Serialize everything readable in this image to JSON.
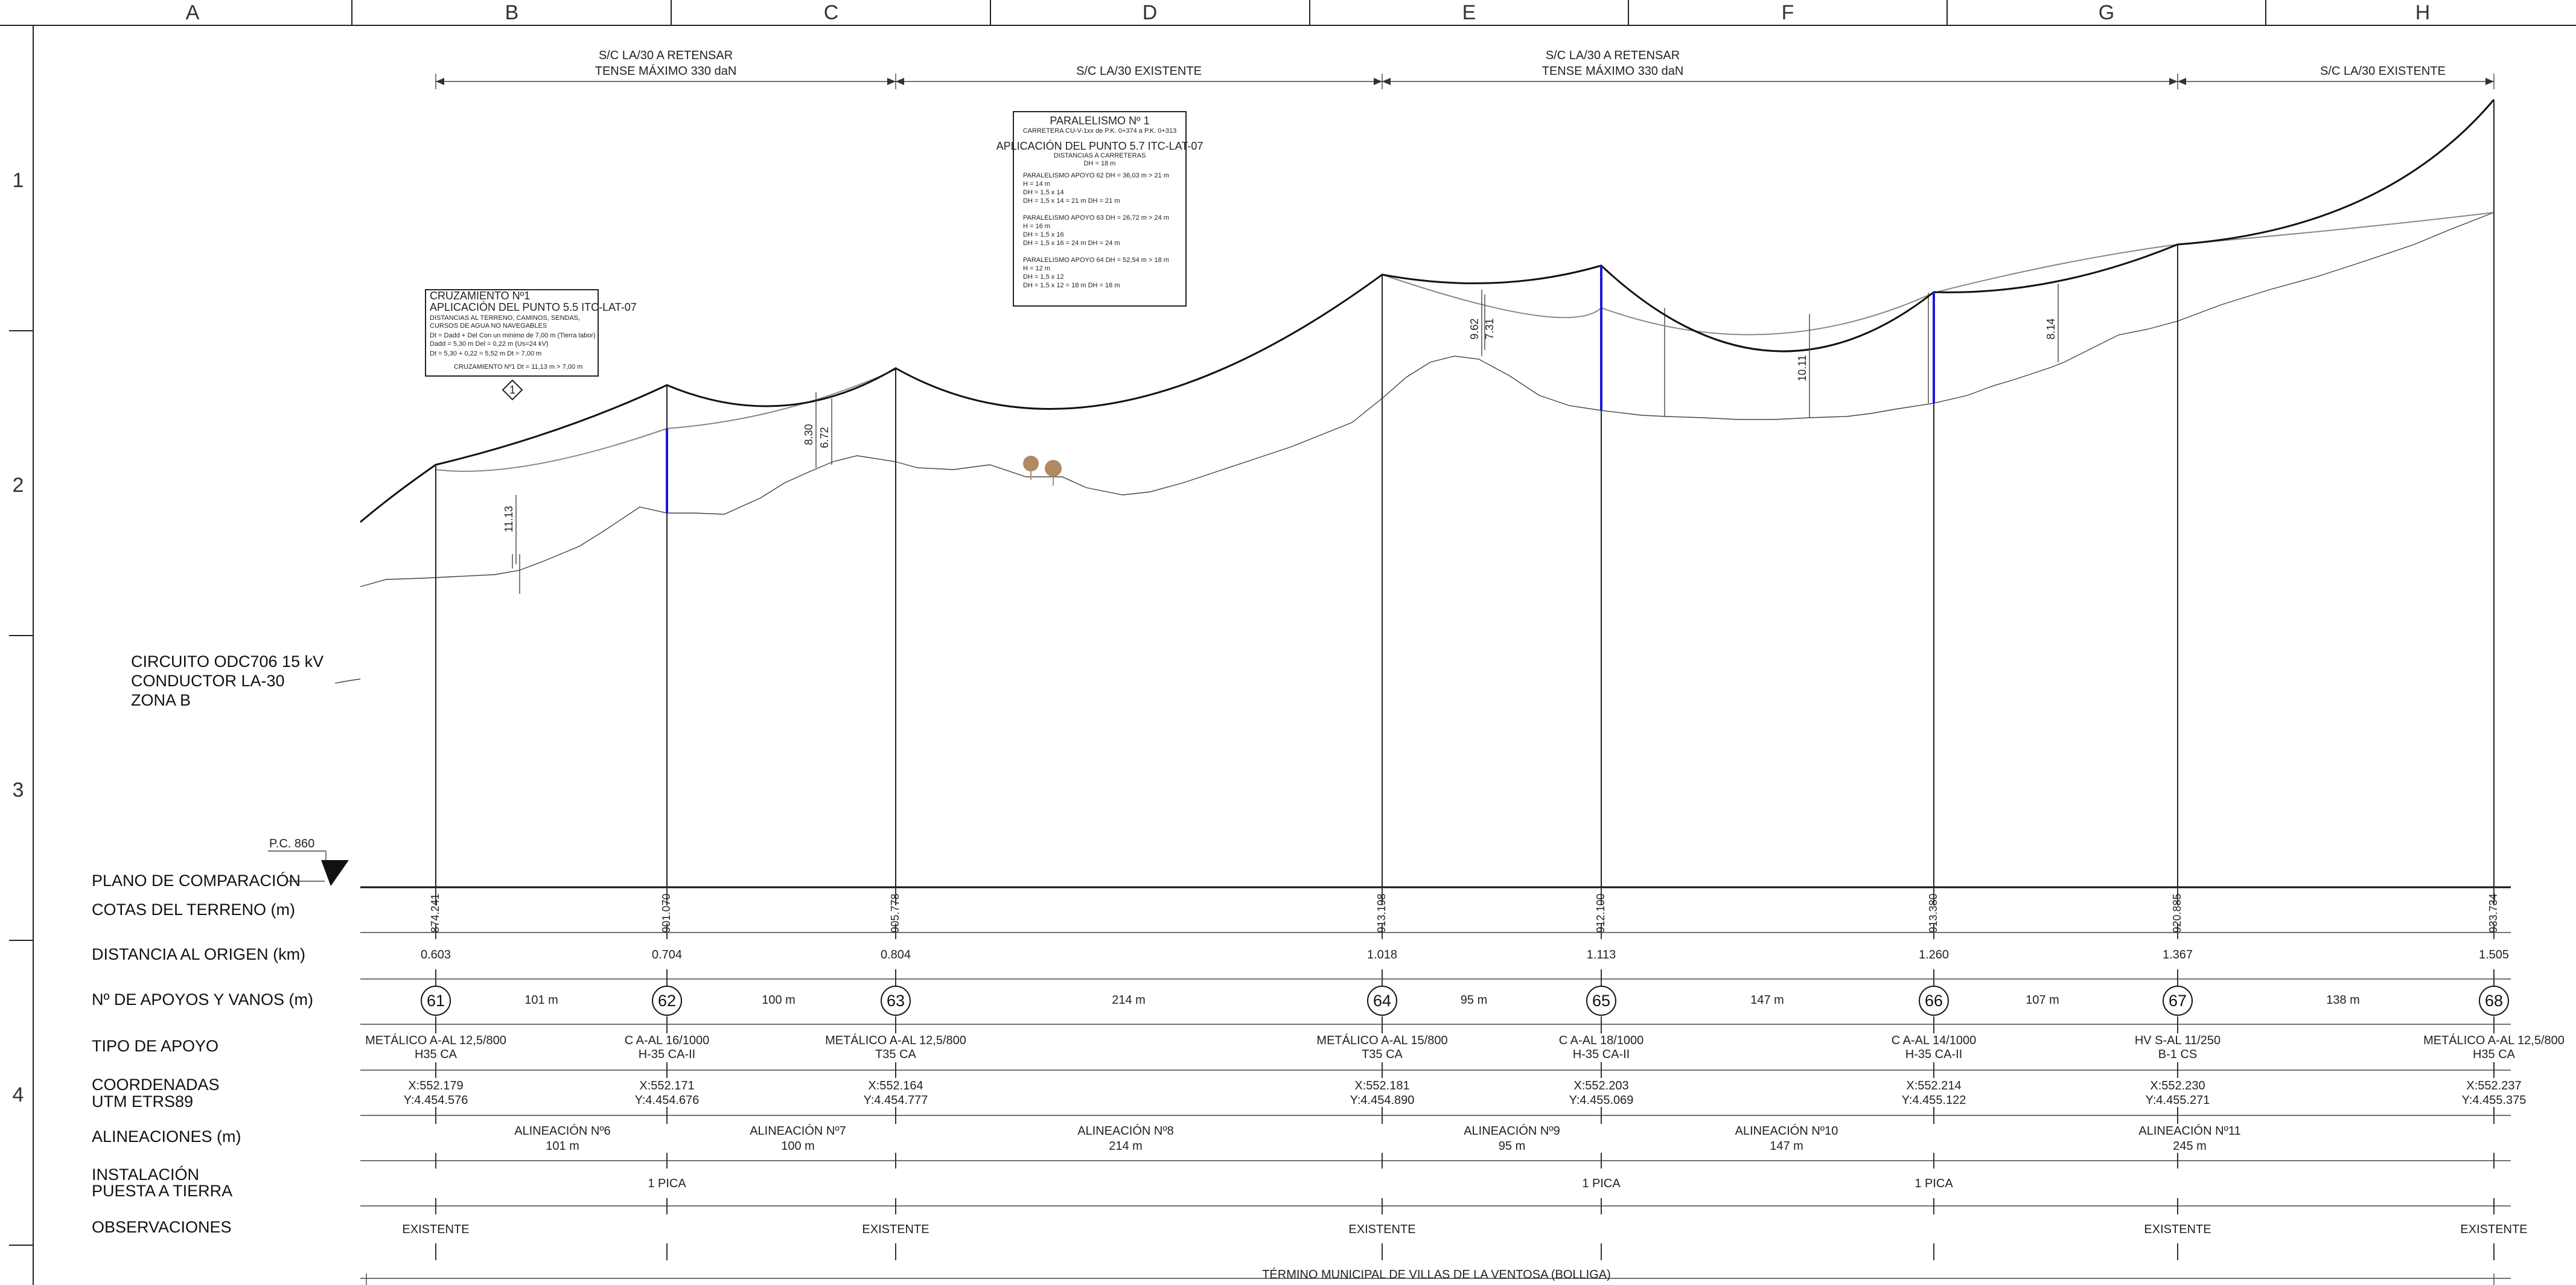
{
  "grid": {
    "columns": [
      "A",
      "B",
      "C",
      "D",
      "E",
      "F",
      "G",
      "H"
    ],
    "rows": [
      "1",
      "2",
      "3",
      "4"
    ]
  },
  "circuit": {
    "line1": "CIRCUITO ODC706  15 kV",
    "line2": "CONDUCTOR LA-30",
    "line3": "ZONA B"
  },
  "comparison_plane": {
    "label": "P.C. 860"
  },
  "row_labels": [
    "PLANO DE COMPARACIÓN",
    "COTAS DEL TERRENO (m)",
    "DISTANCIA AL ORIGEN (km)",
    "Nº DE APOYOS Y VANOS (m)",
    "TIPO DE APOYO",
    "COORDENADAS",
    "UTM ETRS89",
    "ALINEACIONES (m)",
    "INSTALACIÓN",
    "PUESTA A TIERRA",
    "OBSERVACIONES"
  ],
  "sections": [
    {
      "line1": "S/C LA/30 A RETENSAR",
      "line2": "TENSE MÁXIMO 330 daN"
    },
    {
      "line1": "S/C LA/30  EXISTENTE",
      "line2": ""
    },
    {
      "line1": "S/C LA/30 A RETENSAR",
      "line2": "TENSE MÁXIMO 330 daN"
    },
    {
      "line1": "S/C LA/30  EXISTENTE",
      "line2": ""
    }
  ],
  "supports": [
    {
      "num": "61",
      "cota": "874.241",
      "dist": "0.603",
      "tipo1": "METÁLICO A-AL 12,5/800",
      "tipo2": "H35 CA",
      "x": "X:552.179",
      "y": "Y:4.454.576",
      "pat": "",
      "obs": "EXISTENTE"
    },
    {
      "num": "62",
      "cota": "901.070",
      "dist": "0.704",
      "tipo1": "C A-AL 16/1000",
      "tipo2": "H-35 CA-II",
      "x": "X:552.171",
      "y": "Y:4.454.676",
      "pat": "1 PICA",
      "obs": ""
    },
    {
      "num": "63",
      "cota": "905.778",
      "dist": "0.804",
      "tipo1": "METÁLICO A-AL 12,5/800",
      "tipo2": "T35 CA",
      "x": "X:552.164",
      "y": "Y:4.454.777",
      "pat": "",
      "obs": "EXISTENTE"
    },
    {
      "num": "64",
      "cota": "913.198",
      "dist": "1.018",
      "tipo1": "METÁLICO A-AL 15/800",
      "tipo2": "T35 CA",
      "x": "X:552.181",
      "y": "Y:4.454.890",
      "pat": "",
      "obs": "EXISTENTE"
    },
    {
      "num": "65",
      "cota": "912.100",
      "dist": "1.113",
      "tipo1": "C A-AL 18/1000",
      "tipo2": "H-35 CA-II",
      "x": "X:552.203",
      "y": "Y:4.455.069",
      "pat": "1 PICA",
      "obs": ""
    },
    {
      "num": "66",
      "cota": "913.380",
      "dist": "1.260",
      "tipo1": "C A-AL 14/1000",
      "tipo2": "H-35 CA-II",
      "x": "X:552.214",
      "y": "Y:4.455.122",
      "pat": "1 PICA",
      "obs": ""
    },
    {
      "num": "67",
      "cota": "920.885",
      "dist": "1.367",
      "tipo1": "HV S-AL 11/250",
      "tipo2": "B-1 CS",
      "x": "X:552.230",
      "y": "Y:4.455.271",
      "pat": "",
      "obs": "EXISTENTE"
    },
    {
      "num": "68",
      "cota": "933.734",
      "dist": "1.505",
      "tipo1": "METÁLICO A-AL 12,5/800",
      "tipo2": "H35 CA",
      "x": "X:552.237",
      "y": "Y:4.455.375",
      "pat": "",
      "obs": "EXISTENTE"
    }
  ],
  "spans": [
    "101 m",
    "100 m",
    "214 m",
    "95 m",
    "147 m",
    "107 m",
    "138 m"
  ],
  "alignments": [
    {
      "name": "ALINEACIÓN Nº6",
      "len": "101 m"
    },
    {
      "name": "ALINEACIÓN Nº7",
      "len": "100 m"
    },
    {
      "name": "ALINEACIÓN Nº8",
      "len": "214 m"
    },
    {
      "name": "ALINEACIÓN Nº9",
      "len": "95 m"
    },
    {
      "name": "ALINEACIÓN Nº10",
      "len": "147 m"
    },
    {
      "name": "ALINEACIÓN Nº11",
      "len": "245 m"
    }
  ],
  "municipality": "TÉRMINO MUNICIPAL DE VILLAS DE LA VENTOSA (BOLLIGA)",
  "crossing_box": {
    "title": "CRUZAMIENTO Nº1",
    "heading": "APLICACIÓN DEL PUNTO 5.5 ITC-LAT-07",
    "l1": "DISTANCIAS AL TERRENO, CAMINOS, SENDAS,",
    "l2": "CURSOS DE AGUA NO NAVEGABLES",
    "l3": "Dt = Dadd + Del  Con un mínimo de 7,00 m (Tierra labor)",
    "l4": "Dadd = 5,30 m    Del = 0,22 m (Us=24 kV)",
    "l5": "Dt = 5,30 + 0,22 = 5,52 m           Dt = 7,00 m",
    "l6": "CRUZAMIENTO Nº1      Dt = 11,13 m   > 7,00 m",
    "marker": "1"
  },
  "parallel_box": {
    "title": "PARALELISMO Nº 1",
    "subtitle": "CARRETERA CU-V-1xx de P.K. 0+374 a P.K. 0+313",
    "heading": "APLICACIÓN DEL PUNTO 5.7 ITC-LAT-07",
    "sub2": "DISTANCIAS A CARRETERAS",
    "sub3": "DH = 18 m",
    "g1": [
      "PARALELISMO APOYO 62   DH = 36,03 m > 21 m",
      "H = 14 m",
      "DH = 1,5 x 14",
      "DH = 1,5 x 14 = 21 m       DH = 21 m"
    ],
    "g2": [
      "PARALELISMO APOYO 63   DH = 26,72 m > 24 m",
      "H = 16 m",
      "DH = 1,5 x 16",
      "DH = 1,5 x 16 = 24 m       DH = 24 m"
    ],
    "g3": [
      "PARALELISMO APOYO 64   DH = 52,54 m > 18 m",
      "H = 12 m",
      "DH = 1,5 x 12",
      "DH = 1,5 x 12 = 18 m       DH = 18 m"
    ]
  },
  "clearances": [
    "11.13",
    "8.30",
    "6.72",
    "9.62",
    "7.31",
    "10.11",
    "8.14"
  ]
}
